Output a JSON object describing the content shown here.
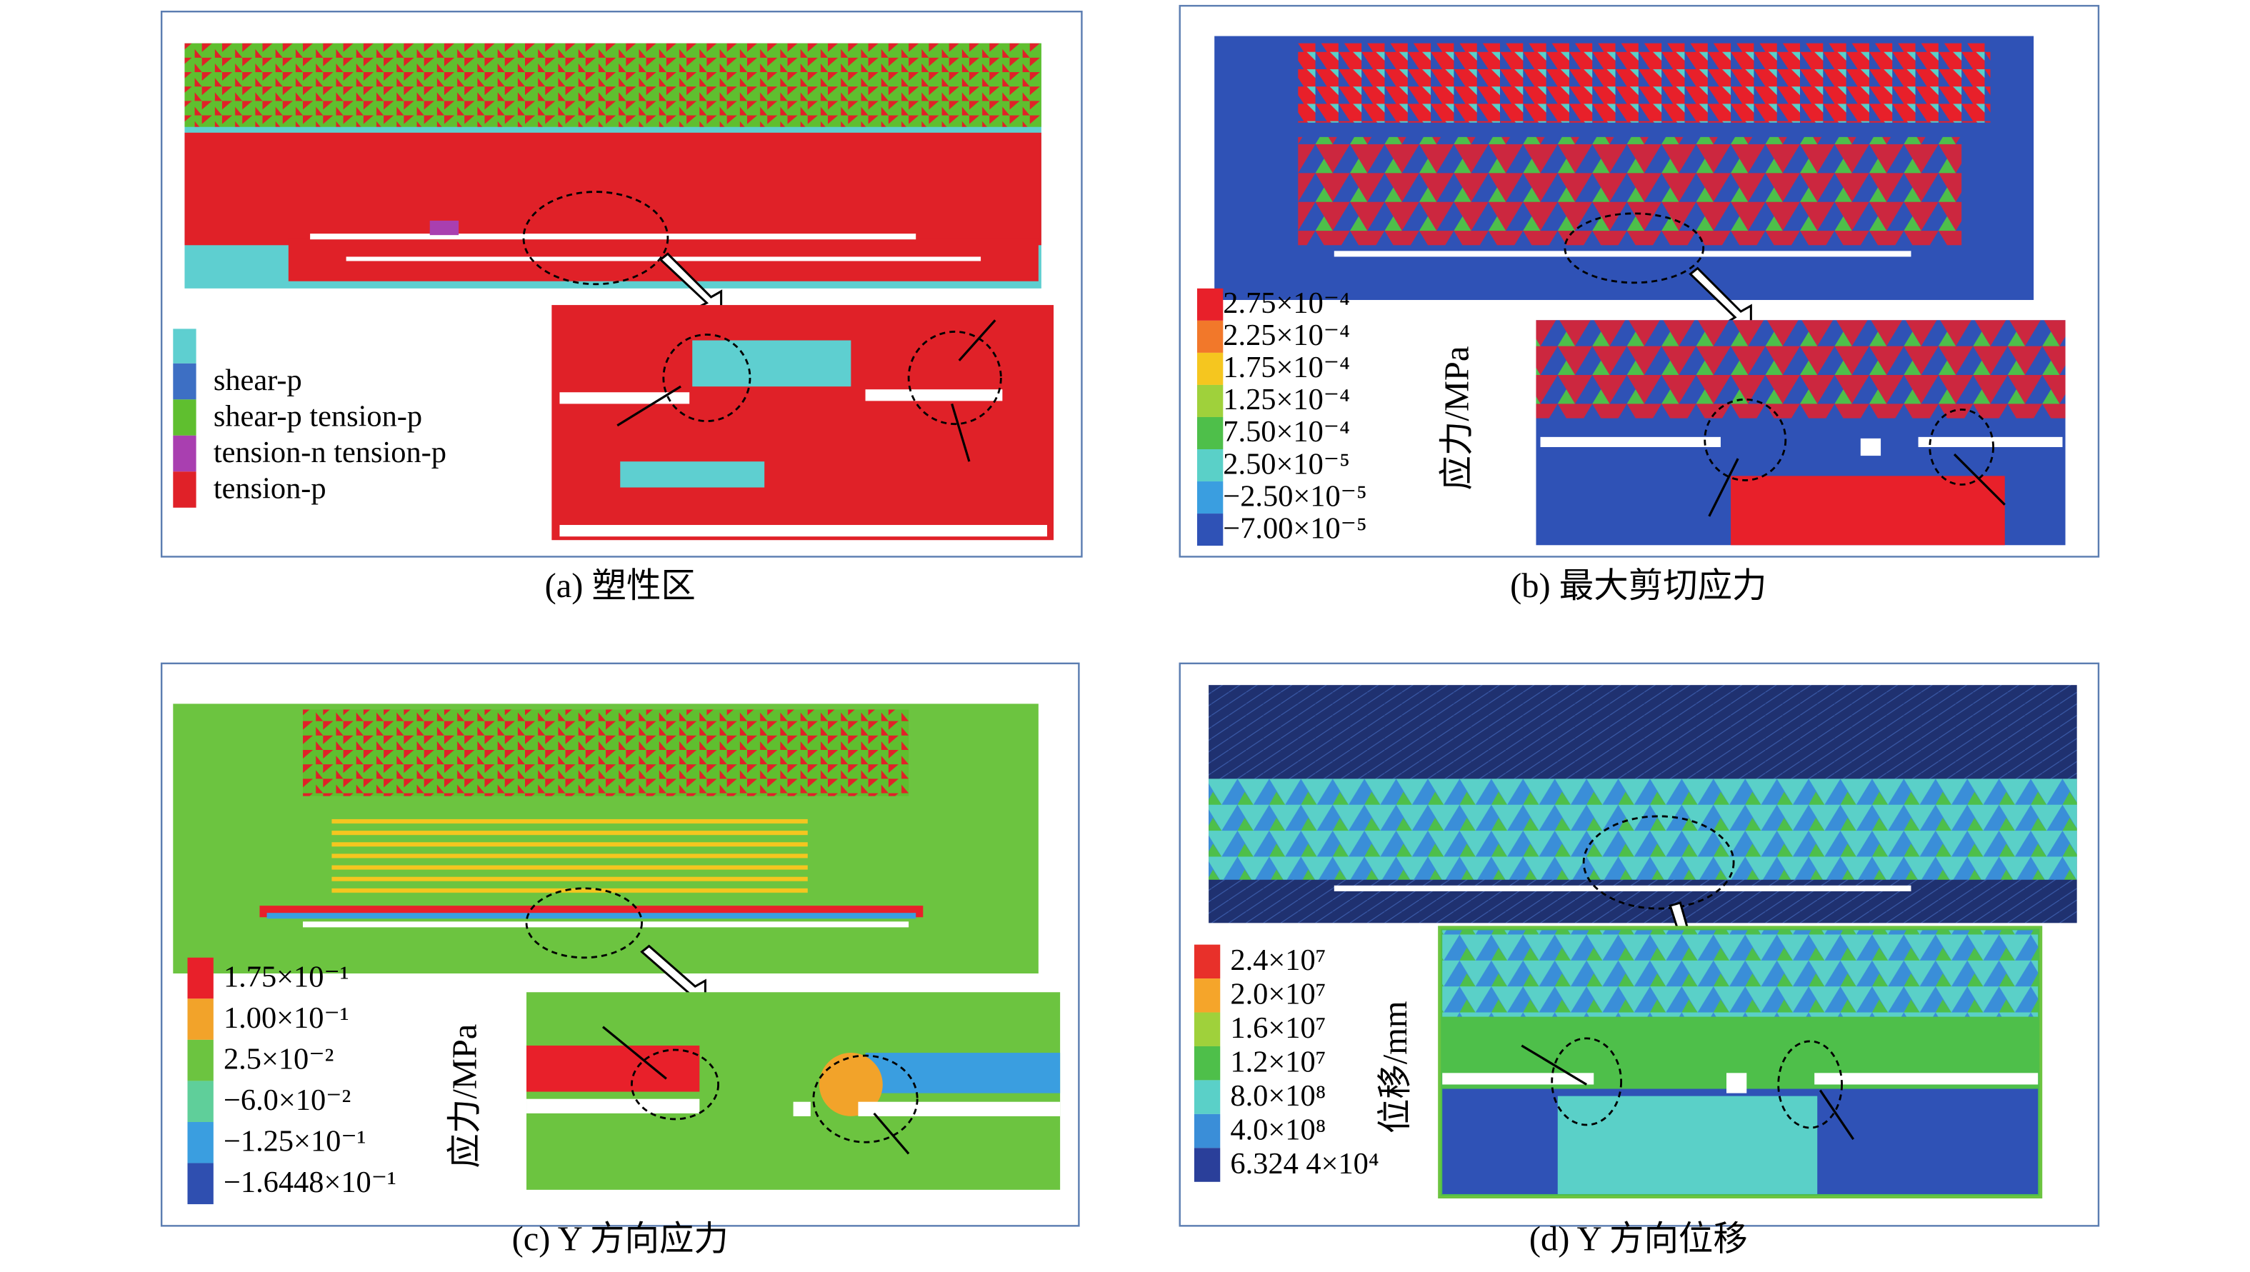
{
  "panels": [
    {
      "caption": "(a) 塑性区",
      "legend": [
        {
          "label": "shear-p",
          "color": "#3d6fc4"
        },
        {
          "label": "shear-p tension-p",
          "color": "#5fbf2f"
        },
        {
          "label": "tension-n tension-p",
          "color": "#a93fb0"
        },
        {
          "label": "tension-p",
          "color": "#e02128"
        }
      ]
    },
    {
      "caption": "(b) 最大剪切应力",
      "axis_label": "应力/MPa",
      "legend": [
        {
          "label": "2.75×10⁻⁴",
          "color": "#e8202a"
        },
        {
          "label": "2.25×10⁻⁴",
          "color": "#f2782a"
        },
        {
          "label": "1.75×10⁻⁴",
          "color": "#f5c61f"
        },
        {
          "label": "1.25×10⁻⁴",
          "color": "#9fd13b"
        },
        {
          "label": "7.50×10⁻⁴",
          "color": "#4ebf4a"
        },
        {
          "label": "2.50×10⁻⁵",
          "color": "#5ad0c8"
        },
        {
          "label": "−2.50×10⁻⁵",
          "color": "#3a9ee0"
        },
        {
          "label": "−7.00×10⁻⁵",
          "color": "#2f52b6"
        }
      ]
    },
    {
      "caption": "(c) Y 方向应力",
      "axis_label": "应力/MPa",
      "legend": [
        {
          "label": "1.75×10⁻¹",
          "color": "#e8202a"
        },
        {
          "label": "1.00×10⁻¹",
          "color": "#f2a32a"
        },
        {
          "label": "2.5×10⁻²",
          "color": "#6cc440"
        },
        {
          "label": "−6.0×10⁻²",
          "color": "#5fcf9a"
        },
        {
          "label": "−1.25×10⁻¹",
          "color": "#3a9ee0"
        },
        {
          "label": "−1.6448×10⁻¹",
          "color": "#2f4fb0"
        }
      ]
    },
    {
      "caption": "(d) Y 方向位移",
      "axis_label": "位移/mm",
      "legend": [
        {
          "label": "2.4×10⁷",
          "color": "#e8302a"
        },
        {
          "label": "2.0×10⁷",
          "color": "#f5a52a"
        },
        {
          "label": "1.6×10⁷",
          "color": "#9fd13b"
        },
        {
          "label": "1.2×10⁷",
          "color": "#4ebf4a"
        },
        {
          "label": "8.0×10⁸",
          "color": "#5ad0c8"
        },
        {
          "label": "4.0×10⁸",
          "color": "#3a8ed8"
        },
        {
          "label": "6.324 4×10⁴",
          "color": "#2a3f9a"
        }
      ]
    }
  ]
}
